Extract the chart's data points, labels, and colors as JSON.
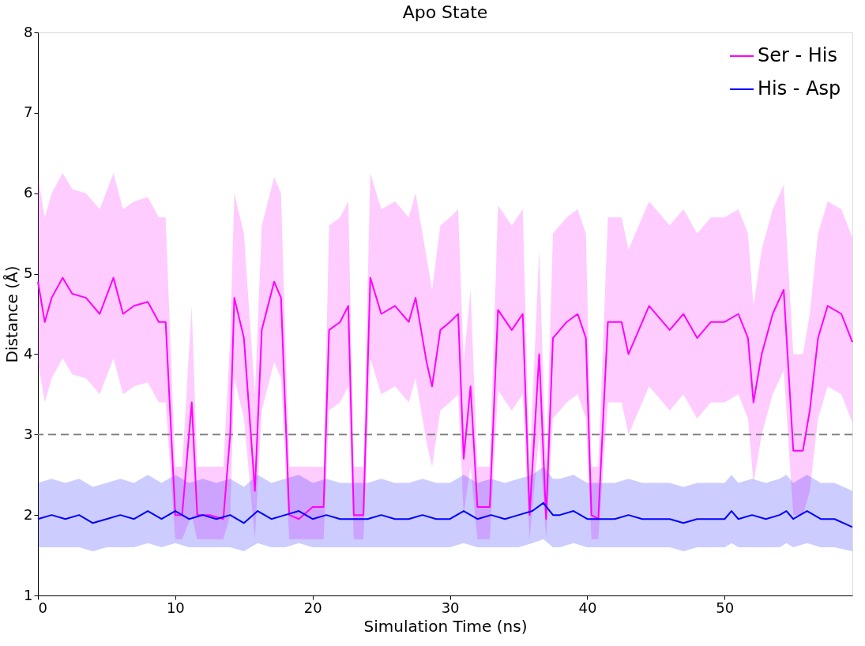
{
  "chart_data": {
    "type": "line",
    "title": "Apo State",
    "xlabel": "Simulation Time (ns)",
    "ylabel": "Distance (Å)",
    "xlim": [
      0,
      59.3
    ],
    "xticks": [
      0,
      10,
      20,
      30,
      40,
      50
    ],
    "ylim": [
      1,
      8
    ],
    "yticks": [
      1,
      2,
      3,
      4,
      5,
      6,
      7,
      8
    ],
    "grid": false,
    "legend": "top right",
    "marker": "none",
    "line_style": "solid",
    "ref_lines": [
      {
        "axis": "y",
        "value": 3,
        "color": "#808080",
        "line_style": "dashed"
      }
    ],
    "series": [
      {
        "name": "Ser - His",
        "color": "#ff00ff",
        "x": [
          0,
          0.5,
          1,
          1.8,
          2.5,
          3.5,
          4.5,
          5.5,
          6.2,
          7,
          8,
          8.8,
          9.3,
          10,
          10.5,
          11.2,
          11.6,
          12.5,
          13.5,
          14,
          14.3,
          15,
          15.8,
          16.3,
          17.2,
          17.7,
          18.3,
          19,
          20,
          20.8,
          21.2,
          22,
          22.6,
          23,
          23.7,
          24.2,
          25,
          26,
          27,
          27.5,
          28.3,
          28.7,
          29.3,
          30,
          30.6,
          31,
          31.5,
          32,
          32.9,
          33.5,
          34.5,
          35.3,
          35.8,
          36.5,
          37,
          37.5,
          38.5,
          39.3,
          39.9,
          40.3,
          40.8,
          41.5,
          42.5,
          43,
          44.5,
          46,
          47,
          48,
          49,
          50,
          51,
          51.7,
          52.1,
          52.7,
          53.5,
          54.3,
          55,
          55.7,
          56.2,
          56.8,
          57.5,
          58.5,
          59.3
        ],
        "values": [
          4.9,
          4.4,
          4.7,
          4.95,
          4.75,
          4.7,
          4.5,
          4.95,
          4.5,
          4.6,
          4.65,
          4.4,
          4.4,
          2.0,
          2.0,
          3.4,
          2.0,
          2.0,
          1.95,
          3.0,
          4.7,
          4.2,
          2.3,
          4.3,
          4.9,
          4.7,
          2.0,
          1.95,
          2.1,
          2.1,
          4.3,
          4.4,
          4.6,
          2.0,
          2.0,
          4.95,
          4.5,
          4.6,
          4.4,
          4.7,
          3.9,
          3.6,
          4.3,
          4.4,
          4.5,
          2.7,
          3.6,
          2.1,
          2.1,
          4.55,
          4.3,
          4.5,
          2.0,
          4.0,
          1.95,
          4.2,
          4.4,
          4.5,
          4.2,
          2.0,
          1.95,
          4.4,
          4.4,
          4.0,
          4.6,
          4.3,
          4.5,
          4.2,
          4.4,
          4.4,
          4.5,
          4.2,
          3.4,
          4.0,
          4.5,
          4.8,
          2.8,
          2.8,
          3.3,
          4.2,
          4.6,
          4.5,
          4.15
        ],
        "lower": [
          3.9,
          3.4,
          3.7,
          3.95,
          3.75,
          3.7,
          3.5,
          3.95,
          3.5,
          3.6,
          3.65,
          3.4,
          3.4,
          1.7,
          1.7,
          2.0,
          1.7,
          1.7,
          1.7,
          2.0,
          3.7,
          3.2,
          1.7,
          3.3,
          3.9,
          3.7,
          1.7,
          1.7,
          1.7,
          1.7,
          3.3,
          3.4,
          3.6,
          1.7,
          1.7,
          3.95,
          3.5,
          3.6,
          3.4,
          3.7,
          2.9,
          2.6,
          3.3,
          3.4,
          3.5,
          2.0,
          2.6,
          1.7,
          1.7,
          3.55,
          3.3,
          3.5,
          1.7,
          3.0,
          1.7,
          3.2,
          3.4,
          3.5,
          3.2,
          1.7,
          1.7,
          3.4,
          3.4,
          3.0,
          3.6,
          3.3,
          3.5,
          3.2,
          3.4,
          3.4,
          3.5,
          3.2,
          2.4,
          3.0,
          3.5,
          3.8,
          2.0,
          2.0,
          2.3,
          3.2,
          3.6,
          3.5,
          3.15
        ],
        "upper": [
          6.2,
          5.7,
          6.0,
          6.25,
          6.05,
          6.0,
          5.8,
          6.25,
          5.8,
          5.9,
          5.95,
          5.7,
          5.7,
          2.6,
          2.6,
          4.6,
          2.6,
          2.6,
          2.6,
          4.2,
          6.0,
          5.5,
          3.5,
          5.6,
          6.2,
          6.0,
          2.6,
          2.6,
          2.6,
          2.6,
          5.6,
          5.7,
          5.9,
          2.6,
          2.6,
          6.25,
          5.8,
          5.9,
          5.7,
          6.0,
          5.2,
          4.8,
          5.6,
          5.7,
          5.8,
          3.9,
          4.8,
          2.6,
          2.6,
          5.85,
          5.6,
          5.8,
          2.6,
          5.3,
          2.6,
          5.5,
          5.7,
          5.8,
          5.5,
          2.6,
          2.6,
          5.7,
          5.7,
          5.3,
          5.9,
          5.6,
          5.8,
          5.5,
          5.7,
          5.7,
          5.8,
          5.5,
          4.6,
          5.3,
          5.8,
          6.1,
          4.0,
          4.0,
          4.5,
          5.5,
          5.9,
          5.8,
          5.45
        ]
      },
      {
        "name": "His - Asp",
        "color": "#0000ff",
        "x": [
          0,
          1,
          2,
          3,
          4,
          5,
          6,
          7,
          8,
          9,
          10,
          11,
          12,
          13,
          14,
          15,
          16,
          17,
          18,
          19,
          20,
          21,
          22,
          23,
          24,
          25,
          26,
          27,
          28,
          29,
          30,
          31,
          32,
          33,
          34,
          35,
          36,
          36.8,
          37.5,
          38,
          39,
          40,
          41,
          42,
          43,
          44,
          45,
          46,
          47,
          48,
          49,
          50,
          50.5,
          51,
          52,
          53,
          54,
          54.5,
          55,
          56,
          57,
          58,
          59.3
        ],
        "values": [
          1.95,
          2.0,
          1.95,
          2.0,
          1.9,
          1.95,
          2.0,
          1.95,
          2.05,
          1.95,
          2.05,
          1.95,
          2.0,
          1.95,
          2.0,
          1.9,
          2.05,
          1.95,
          2.0,
          2.05,
          1.95,
          2.0,
          1.95,
          1.95,
          1.95,
          2.0,
          1.95,
          1.95,
          2.0,
          1.95,
          1.95,
          2.05,
          1.95,
          2.0,
          1.95,
          2.0,
          2.05,
          2.15,
          2.0,
          2.0,
          2.05,
          1.95,
          1.95,
          1.95,
          2.0,
          1.95,
          1.95,
          1.95,
          1.9,
          1.95,
          1.95,
          1.95,
          2.05,
          1.95,
          2.0,
          1.95,
          2.0,
          2.05,
          1.95,
          2.05,
          1.95,
          1.95,
          1.85
        ],
        "lower": [
          1.6,
          1.6,
          1.6,
          1.6,
          1.55,
          1.6,
          1.6,
          1.6,
          1.65,
          1.6,
          1.65,
          1.6,
          1.6,
          1.6,
          1.6,
          1.55,
          1.65,
          1.6,
          1.6,
          1.65,
          1.6,
          1.6,
          1.6,
          1.6,
          1.6,
          1.6,
          1.6,
          1.6,
          1.6,
          1.6,
          1.6,
          1.65,
          1.6,
          1.6,
          1.6,
          1.6,
          1.65,
          1.7,
          1.6,
          1.6,
          1.65,
          1.6,
          1.6,
          1.6,
          1.6,
          1.6,
          1.6,
          1.6,
          1.55,
          1.6,
          1.6,
          1.6,
          1.65,
          1.6,
          1.6,
          1.6,
          1.6,
          1.65,
          1.6,
          1.65,
          1.6,
          1.6,
          1.55
        ],
        "upper": [
          2.4,
          2.45,
          2.4,
          2.45,
          2.35,
          2.4,
          2.45,
          2.4,
          2.5,
          2.4,
          2.5,
          2.4,
          2.45,
          2.4,
          2.45,
          2.35,
          2.5,
          2.4,
          2.45,
          2.5,
          2.4,
          2.45,
          2.4,
          2.4,
          2.4,
          2.45,
          2.4,
          2.4,
          2.45,
          2.4,
          2.4,
          2.5,
          2.4,
          2.45,
          2.4,
          2.45,
          2.5,
          2.6,
          2.45,
          2.45,
          2.5,
          2.4,
          2.4,
          2.4,
          2.45,
          2.4,
          2.4,
          2.4,
          2.35,
          2.4,
          2.4,
          2.4,
          2.5,
          2.4,
          2.45,
          2.4,
          2.45,
          2.5,
          2.4,
          2.5,
          2.4,
          2.4,
          2.3
        ]
      }
    ]
  }
}
